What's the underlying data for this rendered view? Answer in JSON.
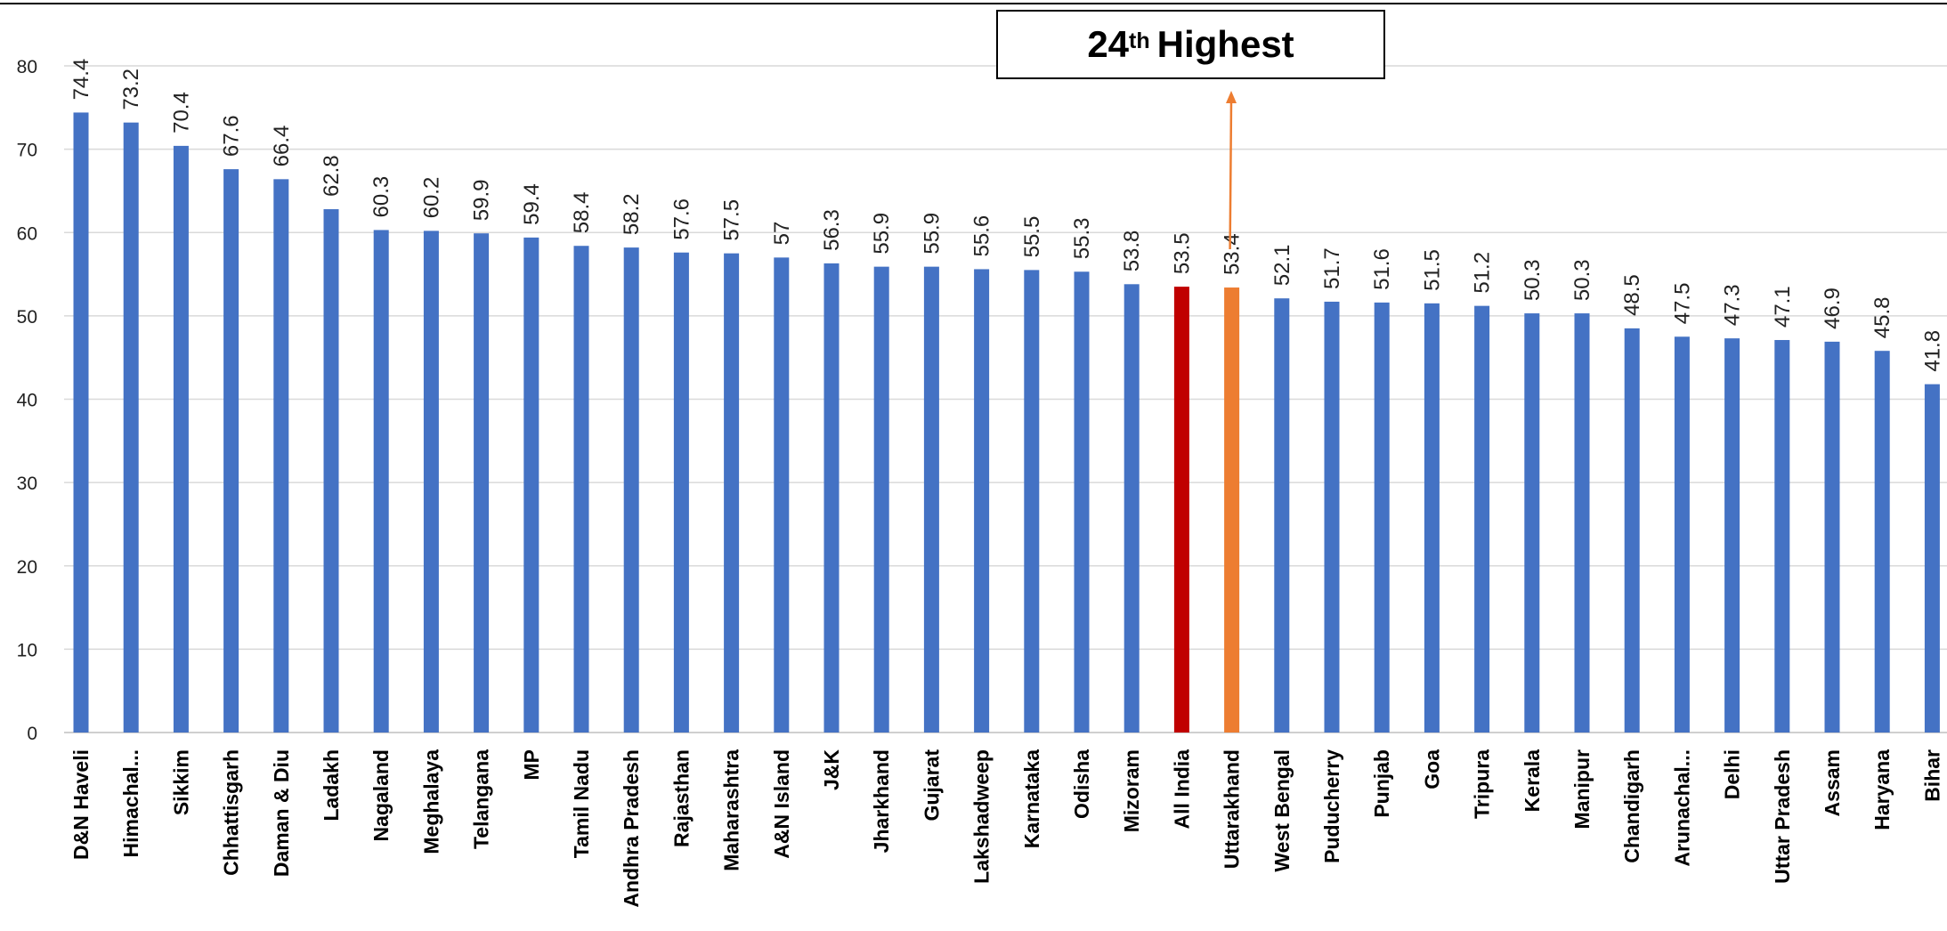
{
  "chart_data": {
    "type": "bar",
    "title": "",
    "xlabel": "",
    "ylabel": "",
    "ylim": [
      0,
      80
    ],
    "yticks": [
      0,
      10,
      20,
      30,
      40,
      50,
      60,
      70,
      80
    ],
    "grid": true,
    "legend": "none",
    "categories": [
      "D&N Haveli",
      "Himachal...",
      "Sikkim",
      "Chhattisgarh",
      "Daman & Diu",
      "Ladakh",
      "Nagaland",
      "Meghalaya",
      "Telangana",
      "MP",
      "Tamil Nadu",
      "Andhra Pradesh",
      "Rajasthan",
      "Maharashtra",
      "A&N Island",
      "J&K",
      "Jharkhand",
      "Gujarat",
      "Lakshadweep",
      "Karnataka",
      "Odisha",
      "Mizoram",
      "All India",
      "Uttarakhand",
      "West Bengal",
      "Puducherry",
      "Punjab",
      "Goa",
      "Tripura",
      "Kerala",
      "Manipur",
      "Chandigarh",
      "Arunachal...",
      "Delhi",
      "Uttar Pradesh",
      "Assam",
      "Haryana",
      "Bihar"
    ],
    "values": [
      74.4,
      73.2,
      70.4,
      67.6,
      66.4,
      62.8,
      60.3,
      60.2,
      59.9,
      59.4,
      58.4,
      58.2,
      57.6,
      57.5,
      57,
      56.3,
      55.9,
      55.9,
      55.6,
      55.5,
      55.3,
      53.8,
      53.5,
      53.4,
      52.1,
      51.7,
      51.6,
      51.5,
      51.2,
      50.3,
      50.3,
      48.5,
      47.5,
      47.3,
      47.1,
      46.9,
      45.8,
      41.8
    ],
    "value_labels": [
      "74.4",
      "73.2",
      "70.4",
      "67.6",
      "66.4",
      "62.8",
      "60.3",
      "60.2",
      "59.9",
      "59.4",
      "58.4",
      "58.2",
      "57.6",
      "57.5",
      "57",
      "56.3",
      "55.9",
      "55.9",
      "55.6",
      "55.5",
      "55.3",
      "53.8",
      "53.5",
      "53.4",
      "52.1",
      "51.7",
      "51.6",
      "51.5",
      "51.2",
      "50.3",
      "50.3",
      "48.5",
      "47.5",
      "47.3",
      "47.1",
      "46.9",
      "45.8",
      "41.8"
    ],
    "colors": {
      "default": "#4472C4",
      "highlight_all_india": "#C00000",
      "highlight_uttarakhand": "#ED7D31",
      "grid": "#D9D9D9",
      "arrow": "#ED7D31"
    },
    "highlights": {
      "All India": "highlight_all_india",
      "Uttarakhand": "highlight_uttarakhand"
    },
    "annotation": {
      "rank": "24",
      "suffix": "th",
      "text": "Highest",
      "target": "Uttarakhand"
    }
  }
}
